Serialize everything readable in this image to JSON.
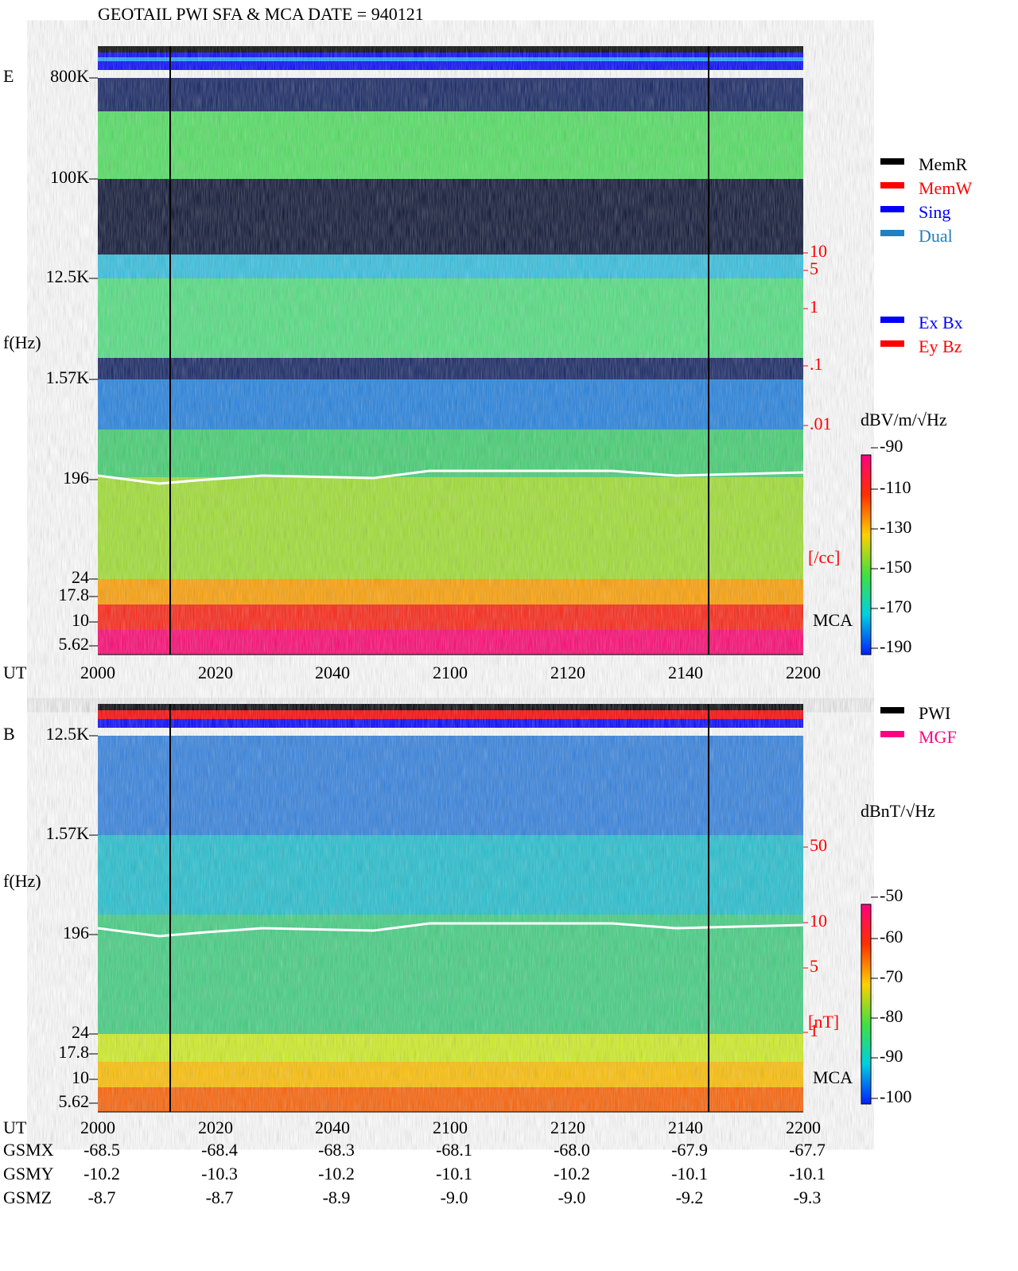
{
  "header": {
    "title": "GEOTAIL  PWI SFA & MCA   DATE = 940121"
  },
  "panels": [
    {
      "component": "E",
      "yaxis_label": "f(Hz)",
      "yticks": [
        "800K",
        "100K",
        "12.5K",
        "1.57K",
        "196",
        "24",
        "17.8",
        "10",
        "5.62"
      ],
      "xaxis_label": "UT",
      "xticks": [
        "2000",
        "2020",
        "2040",
        "2100",
        "2120",
        "2140",
        "2200"
      ],
      "right_ticks": [
        "10",
        "5",
        "1",
        ".1",
        ".01"
      ],
      "right_unit": "[/cc]",
      "mca_label": "MCA",
      "colorbar": {
        "unit": "dBV/m/√Hz",
        "ticks": [
          "-90",
          "-110",
          "-130",
          "-150",
          "-170",
          "-190"
        ]
      },
      "legend": [
        "MemR",
        "MemW",
        "Sing",
        "Dual"
      ],
      "legend2": [
        "Ex Bx",
        "Ey Bz"
      ]
    },
    {
      "component": "B",
      "yaxis_label": "f(Hz)",
      "yticks": [
        "12.5K",
        "1.57K",
        "196",
        "24",
        "17.8",
        "10",
        "5.62"
      ],
      "xaxis_label": "UT",
      "xticks": [
        "2000",
        "2020",
        "2040",
        "2100",
        "2120",
        "2140",
        "2200"
      ],
      "right_ticks": [
        "50",
        "10",
        "5",
        "1"
      ],
      "right_unit": "[nT]",
      "mca_label": "MCA",
      "colorbar": {
        "unit": "dBnT/√Hz",
        "ticks": [
          "-50",
          "-60",
          "-70",
          "-80",
          "-90",
          "-100"
        ]
      },
      "legend": [
        "PWI",
        "MGF"
      ]
    }
  ],
  "orbit": {
    "rows": [
      {
        "label": "GSMX",
        "values": [
          "-68.5",
          "-68.4",
          "-68.3",
          "-68.1",
          "-68.0",
          "-67.9",
          "-67.7"
        ]
      },
      {
        "label": "GSMY",
        "values": [
          "-10.2",
          "-10.3",
          "-10.2",
          "-10.1",
          "-10.2",
          "-10.1",
          "-10.1"
        ]
      },
      {
        "label": "GSMZ",
        "values": [
          "-8.7",
          "-8.7",
          "-8.9",
          "-9.0",
          "-9.0",
          "-9.2",
          "-9.3"
        ]
      }
    ]
  }
}
